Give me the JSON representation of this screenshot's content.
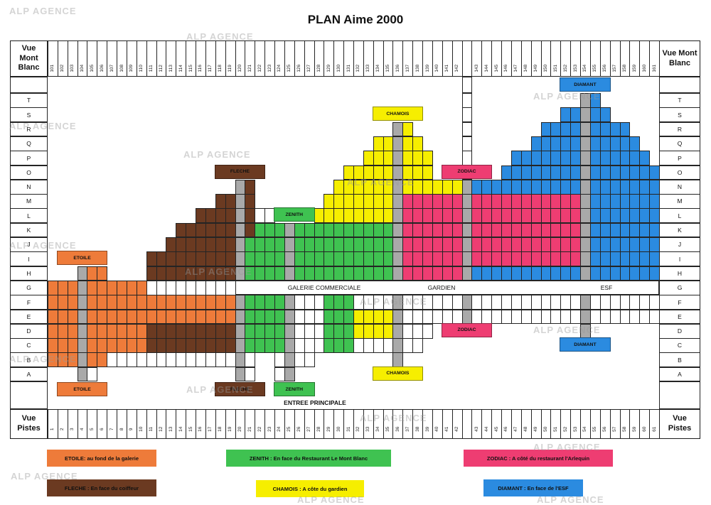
{
  "title": "PLAN Aime 2000",
  "corners": {
    "top_left": "Vue Mont Blanc",
    "top_right": "Vue Mont Blanc",
    "bottom_left": "Vue Pistes",
    "bottom_right": "Vue Pistes"
  },
  "row_letters": [
    "T",
    "S",
    "R",
    "Q",
    "P",
    "O",
    "N",
    "M",
    "L",
    "K",
    "J",
    "I",
    "H",
    "G",
    "F",
    "E",
    "D",
    "C",
    "B",
    "A"
  ],
  "top_numbers": [
    "101",
    "102",
    "103",
    "104",
    "105",
    "106",
    "107",
    "108",
    "109",
    "110",
    "111",
    "112",
    "113",
    "114",
    "115",
    "116",
    "117",
    "118",
    "119",
    "120",
    "121",
    "122",
    "123",
    "124",
    "125",
    "126",
    "127",
    "128",
    "129",
    "130",
    "131",
    "132",
    "133",
    "134",
    "135",
    "136",
    "137",
    "138",
    "139",
    "140",
    "141",
    "142",
    "",
    "143",
    "144",
    "145",
    "146",
    "147",
    "148",
    "149",
    "150",
    "151",
    "152",
    "153",
    "154",
    "155",
    "156",
    "157",
    "158",
    "159",
    "160",
    "161"
  ],
  "bottom_numbers": [
    "1",
    "2",
    "3",
    "4",
    "5",
    "6",
    "7",
    "8",
    "9",
    "10",
    "11",
    "12",
    "13",
    "14",
    "15",
    "16",
    "17",
    "18",
    "19",
    "20",
    "21",
    "22",
    "23",
    "24",
    "25",
    "26",
    "27",
    "28",
    "29",
    "30",
    "31",
    "32",
    "33",
    "34",
    "35",
    "36",
    "37",
    "38",
    "39",
    "40",
    "41",
    "42",
    "",
    "43",
    "44",
    "45",
    "46",
    "47",
    "48",
    "49",
    "50",
    "51",
    "52",
    "53",
    "54",
    "55",
    "56",
    "57",
    "58",
    "59",
    "60",
    "61"
  ],
  "galerie_row": {
    "galerie": "GALERIE COMMERCIALE",
    "gardien": "GARDIEN",
    "esf": "ESF"
  },
  "entree": "ENTREE PRINCIPALE",
  "colors": {
    "orange": "#EE7B3A",
    "brown": "#6B3A21",
    "green": "#3FC251",
    "yellow": "#F6EE00",
    "pink": "#EE3D72",
    "blue": "#2B8BE0",
    "gray": "#A9A9A9",
    "white": "#FFFFFF"
  },
  "grid_rows": {
    "T": [
      [
        42,
        42,
        "white"
      ],
      [
        54,
        54,
        "gray"
      ],
      [
        55,
        55,
        "blue"
      ]
    ],
    "S": [
      [
        42,
        42,
        "white"
      ],
      [
        52,
        53,
        "blue"
      ],
      [
        54,
        54,
        "gray"
      ],
      [
        55,
        56,
        "blue"
      ]
    ],
    "R": [
      [
        35,
        35,
        "gray"
      ],
      [
        36,
        36,
        "yellow"
      ],
      [
        42,
        42,
        "white"
      ],
      [
        50,
        53,
        "blue"
      ],
      [
        54,
        54,
        "gray"
      ],
      [
        55,
        58,
        "blue"
      ]
    ],
    "Q": [
      [
        33,
        34,
        "yellow"
      ],
      [
        35,
        35,
        "gray"
      ],
      [
        36,
        37,
        "yellow"
      ],
      [
        42,
        42,
        "white"
      ],
      [
        49,
        53,
        "blue"
      ],
      [
        54,
        54,
        "gray"
      ],
      [
        55,
        59,
        "blue"
      ]
    ],
    "P": [
      [
        32,
        34,
        "yellow"
      ],
      [
        35,
        35,
        "gray"
      ],
      [
        36,
        38,
        "yellow"
      ],
      [
        42,
        42,
        "white"
      ],
      [
        47,
        53,
        "blue"
      ],
      [
        54,
        54,
        "gray"
      ],
      [
        55,
        60,
        "blue"
      ]
    ],
    "O": [
      [
        30,
        34,
        "yellow"
      ],
      [
        35,
        35,
        "gray"
      ],
      [
        36,
        38,
        "yellow"
      ],
      [
        42,
        42,
        "white"
      ],
      [
        46,
        53,
        "blue"
      ],
      [
        54,
        54,
        "gray"
      ],
      [
        55,
        61,
        "blue"
      ]
    ],
    "N": [
      [
        19,
        19,
        "gray"
      ],
      [
        20,
        20,
        "brown"
      ],
      [
        29,
        34,
        "yellow"
      ],
      [
        35,
        35,
        "gray"
      ],
      [
        36,
        41,
        "yellow"
      ],
      [
        42,
        42,
        "gray"
      ],
      [
        43,
        53,
        "blue"
      ],
      [
        54,
        54,
        "gray"
      ],
      [
        55,
        61,
        "blue"
      ]
    ],
    "M": [
      [
        17,
        18,
        "brown"
      ],
      [
        19,
        19,
        "gray"
      ],
      [
        20,
        20,
        "brown"
      ],
      [
        28,
        34,
        "yellow"
      ],
      [
        35,
        35,
        "gray"
      ],
      [
        36,
        41,
        "pink"
      ],
      [
        42,
        42,
        "gray"
      ],
      [
        43,
        53,
        "pink"
      ],
      [
        54,
        54,
        "gray"
      ],
      [
        55,
        61,
        "blue"
      ]
    ],
    "L": [
      [
        15,
        18,
        "brown"
      ],
      [
        19,
        19,
        "gray"
      ],
      [
        20,
        20,
        "brown"
      ],
      [
        21,
        22,
        "white"
      ],
      [
        27,
        34,
        "yellow"
      ],
      [
        35,
        35,
        "gray"
      ],
      [
        36,
        41,
        "pink"
      ],
      [
        42,
        42,
        "gray"
      ],
      [
        43,
        53,
        "pink"
      ],
      [
        54,
        54,
        "gray"
      ],
      [
        55,
        61,
        "blue"
      ]
    ],
    "K": [
      [
        13,
        18,
        "brown"
      ],
      [
        19,
        19,
        "gray"
      ],
      [
        20,
        20,
        "brown"
      ],
      [
        21,
        23,
        "green"
      ],
      [
        24,
        24,
        "gray"
      ],
      [
        25,
        34,
        "green"
      ],
      [
        35,
        35,
        "gray"
      ],
      [
        36,
        41,
        "pink"
      ],
      [
        42,
        42,
        "gray"
      ],
      [
        43,
        53,
        "pink"
      ],
      [
        54,
        54,
        "gray"
      ],
      [
        55,
        61,
        "blue"
      ]
    ],
    "J": [
      [
        12,
        18,
        "brown"
      ],
      [
        19,
        19,
        "gray"
      ],
      [
        20,
        23,
        "green"
      ],
      [
        24,
        24,
        "gray"
      ],
      [
        25,
        34,
        "green"
      ],
      [
        35,
        35,
        "gray"
      ],
      [
        36,
        41,
        "pink"
      ],
      [
        42,
        42,
        "gray"
      ],
      [
        43,
        53,
        "pink"
      ],
      [
        54,
        54,
        "gray"
      ],
      [
        55,
        61,
        "blue"
      ]
    ],
    "I": [
      [
        10,
        18,
        "brown"
      ],
      [
        19,
        19,
        "gray"
      ],
      [
        20,
        23,
        "green"
      ],
      [
        24,
        24,
        "gray"
      ],
      [
        25,
        34,
        "green"
      ],
      [
        35,
        35,
        "gray"
      ],
      [
        36,
        41,
        "pink"
      ],
      [
        42,
        42,
        "gray"
      ],
      [
        43,
        53,
        "pink"
      ],
      [
        54,
        54,
        "gray"
      ],
      [
        55,
        61,
        "blue"
      ]
    ],
    "H": [
      [
        3,
        3,
        "gray"
      ],
      [
        4,
        5,
        "orange"
      ],
      [
        10,
        18,
        "brown"
      ],
      [
        19,
        19,
        "gray"
      ],
      [
        20,
        23,
        "green"
      ],
      [
        24,
        24,
        "gray"
      ],
      [
        25,
        34,
        "green"
      ],
      [
        35,
        35,
        "gray"
      ],
      [
        36,
        41,
        "pink"
      ],
      [
        42,
        42,
        "gray"
      ],
      [
        43,
        53,
        "blue"
      ],
      [
        54,
        54,
        "gray"
      ],
      [
        55,
        61,
        "blue"
      ]
    ],
    "G": [
      [
        0,
        2,
        "orange"
      ],
      [
        3,
        3,
        "gray"
      ],
      [
        4,
        9,
        "orange"
      ],
      [
        10,
        18,
        "white"
      ]
    ],
    "F": [
      [
        0,
        2,
        "orange"
      ],
      [
        3,
        3,
        "gray"
      ],
      [
        4,
        18,
        "orange"
      ],
      [
        19,
        19,
        "gray"
      ],
      [
        20,
        23,
        "green"
      ],
      [
        24,
        24,
        "gray"
      ],
      [
        25,
        27,
        "white"
      ],
      [
        28,
        30,
        "green"
      ],
      [
        31,
        34,
        "white"
      ],
      [
        35,
        35,
        "gray"
      ],
      [
        36,
        41,
        "white"
      ],
      [
        42,
        42,
        "gray"
      ],
      [
        43,
        53,
        "white"
      ],
      [
        54,
        54,
        "gray"
      ],
      [
        55,
        61,
        "white"
      ]
    ],
    "E": [
      [
        0,
        2,
        "orange"
      ],
      [
        3,
        3,
        "gray"
      ],
      [
        4,
        18,
        "orange"
      ],
      [
        19,
        19,
        "gray"
      ],
      [
        20,
        23,
        "green"
      ],
      [
        24,
        24,
        "gray"
      ],
      [
        25,
        27,
        "white"
      ],
      [
        28,
        30,
        "green"
      ],
      [
        31,
        34,
        "yellow"
      ],
      [
        35,
        35,
        "gray"
      ],
      [
        36,
        41,
        "white"
      ],
      [
        42,
        42,
        "gray"
      ],
      [
        43,
        53,
        "white"
      ],
      [
        54,
        54,
        "gray"
      ],
      [
        55,
        61,
        "white"
      ]
    ],
    "D": [
      [
        0,
        2,
        "orange"
      ],
      [
        3,
        3,
        "gray"
      ],
      [
        4,
        9,
        "orange"
      ],
      [
        10,
        18,
        "brown"
      ],
      [
        19,
        19,
        "gray"
      ],
      [
        20,
        23,
        "green"
      ],
      [
        24,
        24,
        "gray"
      ],
      [
        25,
        27,
        "white"
      ],
      [
        28,
        30,
        "green"
      ],
      [
        31,
        34,
        "yellow"
      ],
      [
        35,
        35,
        "gray"
      ],
      [
        36,
        38,
        "white"
      ],
      [
        54,
        54,
        "gray"
      ]
    ],
    "C": [
      [
        0,
        2,
        "orange"
      ],
      [
        3,
        3,
        "gray"
      ],
      [
        4,
        9,
        "orange"
      ],
      [
        10,
        18,
        "brown"
      ],
      [
        19,
        19,
        "gray"
      ],
      [
        20,
        23,
        "green"
      ],
      [
        24,
        24,
        "gray"
      ],
      [
        25,
        27,
        "white"
      ],
      [
        28,
        30,
        "green"
      ],
      [
        31,
        34,
        "white"
      ],
      [
        35,
        35,
        "gray"
      ],
      [
        36,
        37,
        "white"
      ]
    ],
    "B": [
      [
        0,
        2,
        "orange"
      ],
      [
        3,
        3,
        "gray"
      ],
      [
        4,
        5,
        "orange"
      ],
      [
        6,
        18,
        "white"
      ],
      [
        19,
        19,
        "gray"
      ],
      [
        20,
        20,
        "white"
      ],
      [
        23,
        23,
        "white"
      ],
      [
        24,
        24,
        "gray"
      ],
      [
        25,
        26,
        "white"
      ],
      [
        35,
        35,
        "gray"
      ]
    ],
    "A": [
      [
        3,
        3,
        "gray"
      ],
      [
        4,
        4,
        "white"
      ],
      [
        19,
        19,
        "gray"
      ],
      [
        20,
        20,
        "white"
      ],
      [
        23,
        23,
        "white"
      ],
      [
        24,
        24,
        "gray"
      ]
    ]
  },
  "section_labels": [
    {
      "name": "diamant-upper-label",
      "text": "DIAMANT",
      "color": "blue",
      "slots": [
        52,
        56
      ],
      "pos": "strip_top"
    },
    {
      "name": "chamois-upper-label",
      "text": "CHAMOIS",
      "color": "yellow",
      "slots": [
        33,
        37
      ],
      "row": "S"
    },
    {
      "name": "fleche-upper-label",
      "text": "FLECHE",
      "color": "brown",
      "slots": [
        17,
        21
      ],
      "row": "O"
    },
    {
      "name": "zodiac-upper-label",
      "text": "ZODIAC",
      "color": "pink",
      "slots": [
        40,
        44
      ],
      "row": "O"
    },
    {
      "name": "zenith-upper-label",
      "text": "ZENITH",
      "color": "green",
      "slots": [
        23,
        26
      ],
      "row": "L"
    },
    {
      "name": "etoile-upper-label",
      "text": "ETOILE",
      "color": "orange",
      "slots": [
        1,
        5
      ],
      "row": "I"
    },
    {
      "name": "zodiac-lower-label",
      "text": "ZODIAC",
      "color": "pink",
      "slots": [
        40,
        44
      ],
      "row": "D"
    },
    {
      "name": "diamant-lower-label",
      "text": "DIAMANT",
      "color": "blue",
      "slots": [
        52,
        56
      ],
      "row": "C"
    },
    {
      "name": "chamois-lower-label",
      "text": "CHAMOIS",
      "color": "yellow",
      "slots": [
        33,
        37
      ],
      "row": "A"
    },
    {
      "name": "etoile-lower-label",
      "text": "ETOILE",
      "color": "orange",
      "slots": [
        1,
        5
      ],
      "pos": "strip_bottom"
    },
    {
      "name": "fleche-lower-label",
      "text": "FLECHE",
      "color": "brown",
      "slots": [
        17,
        21
      ],
      "pos": "strip_bottom"
    },
    {
      "name": "zenith-lower-label",
      "text": "ZENITH",
      "color": "green",
      "slots": [
        23,
        26
      ],
      "pos": "strip_bottom"
    }
  ],
  "legend": [
    {
      "name": "legend-etoile",
      "text": "ETOILE: au fond de la galerie",
      "color": "orange"
    },
    {
      "name": "legend-zenith",
      "text": "ZENITH : En face du Restaurant Le Mont Blanc",
      "color": "green"
    },
    {
      "name": "legend-zodiac",
      "text": "ZODIAC : A côté du restaurant l'Arlequin",
      "color": "pink"
    },
    {
      "name": "legend-fleche",
      "text": "FLECHE : En face du coiffeur",
      "color": "brown"
    },
    {
      "name": "legend-chamois",
      "text": "CHAMOIS : A côte du gardien",
      "color": "yellow"
    },
    {
      "name": "legend-diamant",
      "text": "DIAMANT : En face de l'ESF",
      "color": "blue"
    }
  ],
  "watermark_text": "ALP AGENCE"
}
